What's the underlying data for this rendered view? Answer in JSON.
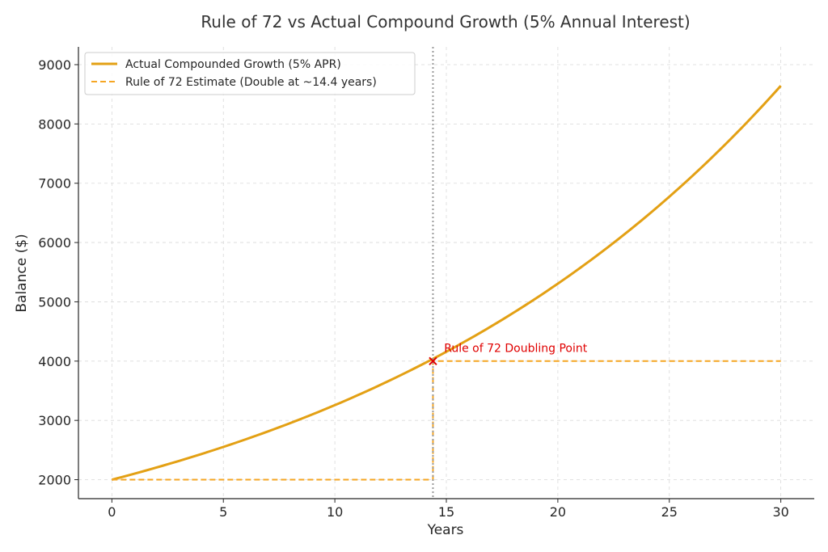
{
  "chart_data": {
    "type": "line",
    "title": "Rule of 72 vs Actual Compound Growth (5% Annual Interest)",
    "xlabel": "Years",
    "ylabel": "Balance ($)",
    "xlim": [
      -1.5,
      31.5
    ],
    "ylim": [
      1680,
      9300
    ],
    "x_ticks": [
      0,
      5,
      10,
      15,
      20,
      25,
      30
    ],
    "y_ticks": [
      2000,
      3000,
      4000,
      5000,
      6000,
      7000,
      8000,
      9000
    ],
    "grid": true,
    "legend_position": "top-left",
    "series": [
      {
        "name": "Actual Compounded Growth (5% APR)",
        "style": "solid",
        "color": "#e3a014",
        "principal": 2000,
        "rate": 0.05,
        "x_start": 0,
        "x_end": 30,
        "x": [
          0,
          2.5,
          5,
          7.5,
          10,
          12.5,
          14.4,
          15,
          17.5,
          20,
          22.5,
          25,
          27.5,
          30
        ],
        "values": [
          2000,
          2260,
          2553,
          2885,
          3258,
          3681,
          4067,
          4158,
          4698,
          5307,
          5995,
          6773,
          7651,
          8644
        ]
      },
      {
        "name": "Rule of 72 Estimate (Double at ~14.4 years)",
        "style": "dashed",
        "color": "#f5a623",
        "x": [
          0,
          14.4,
          14.4,
          30
        ],
        "values": [
          2000,
          2000,
          4000,
          4000
        ]
      }
    ],
    "vline": {
      "x": 14.4,
      "style": "dotted",
      "color": "#999999"
    },
    "marker": {
      "x": 14.4,
      "y": 4000,
      "symbol": "x",
      "color": "#e00000"
    },
    "annotation": {
      "text": "Rule of 72 Doubling Point",
      "x": 14.9,
      "y": 4220,
      "color": "#e00000"
    }
  }
}
